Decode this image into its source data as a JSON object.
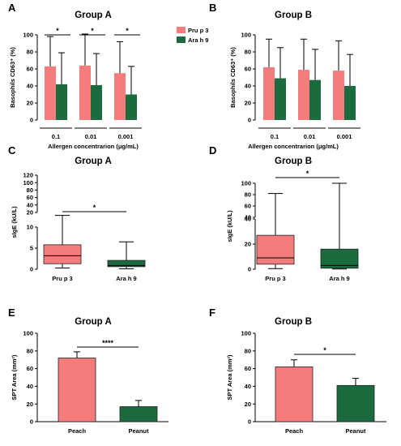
{
  "colors": {
    "pru": "#f47c7c",
    "ara": "#1b6b3f",
    "axis": "#000000"
  },
  "legend": {
    "items": [
      {
        "label": "Pru p 3",
        "color": "#f47c7c"
      },
      {
        "label": "Ara h 9",
        "color": "#1b6b3f"
      }
    ]
  },
  "chart_data": [
    {
      "panel": "A",
      "type": "bar",
      "title": "Group A",
      "ylabel": "Basophils CD63⁺ (%)",
      "xlabel": "Allergen concentrarion (μg/mL)",
      "ylim": [
        0,
        100
      ],
      "yticks": [
        0,
        20,
        40,
        60,
        80,
        100
      ],
      "categories": [
        "0.1",
        "0.01",
        "0.001"
      ],
      "series": [
        {
          "name": "Pru p 3",
          "values": [
            63,
            64,
            55
          ],
          "errors": [
            35,
            37,
            37
          ]
        },
        {
          "name": "Ara h 9",
          "values": [
            42,
            41,
            30
          ],
          "errors": [
            37,
            37,
            33
          ]
        }
      ],
      "significance": [
        "*",
        "*",
        "*"
      ]
    },
    {
      "panel": "B",
      "type": "bar",
      "title": "Group B",
      "ylabel": "Basophils CD63⁺ (%)",
      "xlabel": "Allergen concentrarion (μg/mL)",
      "ylim": [
        0,
        100
      ],
      "yticks": [
        0,
        20,
        40,
        60,
        80,
        100
      ],
      "categories": [
        "0.1",
        "0.01",
        "0.001"
      ],
      "series": [
        {
          "name": "Pru p 3",
          "values": [
            62,
            59,
            58
          ],
          "errors": [
            33,
            36,
            35
          ]
        },
        {
          "name": "Ara h 9",
          "values": [
            49,
            47,
            40
          ],
          "errors": [
            36,
            36,
            37
          ]
        }
      ]
    },
    {
      "panel": "C",
      "type": "box",
      "title": "Group A",
      "ylabel": "sIgE (kU/L)",
      "yticks_bottom": [
        0,
        5,
        10
      ],
      "yticks_top": [
        20,
        40,
        60,
        80,
        100,
        120
      ],
      "categories": [
        "Pru p 3",
        "Ara h 9"
      ],
      "boxes": [
        {
          "name": "Pru p 3",
          "min": 0.3,
          "q1": 1.3,
          "median": 3.2,
          "q3": 5.8,
          "max": 12
        },
        {
          "name": "Ara h 9",
          "min": 0.1,
          "q1": 0.6,
          "median": 0.9,
          "q3": 2.1,
          "max": 6.5
        }
      ],
      "significance": "*"
    },
    {
      "panel": "D",
      "type": "box",
      "title": "Group B",
      "ylabel": "sIgE (kU/L)",
      "yticks_bottom": [
        0,
        20,
        40
      ],
      "yticks_top": [
        40,
        60,
        80,
        100
      ],
      "categories": [
        "Pru p 3",
        "Ara h 9"
      ],
      "boxes": [
        {
          "name": "Pru p 3",
          "min": 0.5,
          "q1": 4,
          "median": 9,
          "q3": 27,
          "max": 82
        },
        {
          "name": "Ara h 9",
          "min": 0.2,
          "q1": 0.8,
          "median": 3,
          "q3": 16,
          "max": 100
        }
      ],
      "significance": "*"
    },
    {
      "panel": "E",
      "type": "bar",
      "title": "Group A",
      "ylabel": "SPT Area (mm²)",
      "ylim": [
        0,
        100
      ],
      "yticks": [
        0,
        20,
        40,
        60,
        80,
        100
      ],
      "categories": [
        "Peach",
        "Peanut"
      ],
      "values": [
        72,
        17
      ],
      "errors": [
        7,
        7
      ],
      "significance": "****"
    },
    {
      "panel": "F",
      "type": "bar",
      "title": "Group B",
      "ylabel": "SPT Area (mm²)",
      "ylim": [
        0,
        100
      ],
      "yticks": [
        0,
        20,
        40,
        60,
        80,
        100
      ],
      "categories": [
        "Peach",
        "Peanut"
      ],
      "values": [
        62,
        41
      ],
      "errors": [
        8,
        8
      ],
      "significance": "*"
    }
  ]
}
